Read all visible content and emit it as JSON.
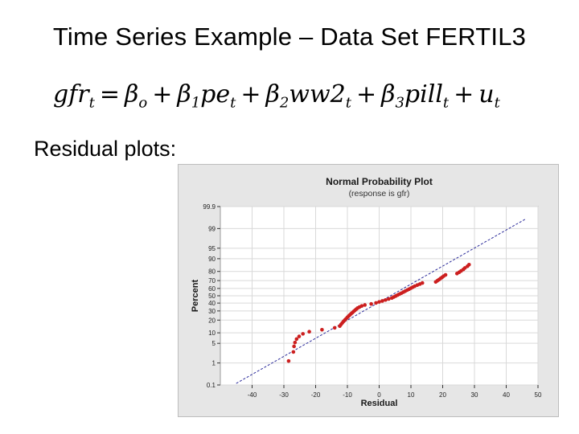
{
  "slide": {
    "title": "Time Series Example – Data Set FERTIL3",
    "subheading": "Residual plots:"
  },
  "equation": {
    "parts": [
      {
        "t": "gfr",
        "sub": "t"
      },
      {
        "op": "="
      },
      {
        "t": "β",
        "sub": "o"
      },
      {
        "op": "+"
      },
      {
        "t": "β",
        "sub": "1"
      },
      {
        "t": "pe",
        "sub": "t"
      },
      {
        "op": "+"
      },
      {
        "t": "β",
        "sub": "2"
      },
      {
        "t": "ww2",
        "sub": "t"
      },
      {
        "op": "+"
      },
      {
        "t": "β",
        "sub": "3"
      },
      {
        "t": "pill",
        "sub": "t"
      },
      {
        "op": "+"
      },
      {
        "t": "u",
        "sub": "t"
      }
    ]
  },
  "chart_data": {
    "type": "scatter",
    "title": "Normal Probability Plot",
    "subtitle": "(response is gfr)",
    "xlabel": "Residual",
    "ylabel": "Percent",
    "xlim": [
      -50,
      50
    ],
    "xticks": [
      -40,
      -30,
      -20,
      -10,
      0,
      10,
      20,
      30,
      40,
      50
    ],
    "y_scale": "normal-probability",
    "ylim": [
      0.1,
      99.9
    ],
    "yticks": [
      0.1,
      1,
      5,
      10,
      20,
      30,
      40,
      50,
      60,
      70,
      80,
      90,
      95,
      99,
      99.9
    ],
    "grid": true,
    "colors": {
      "points": "#cc1f1f",
      "fit_line": "#2b2b9a",
      "panel": "#ffffff",
      "frame": "#e6e6e6"
    },
    "fit_line": {
      "x": [
        -45,
        46
      ],
      "percent": [
        0.12,
        99.6
      ]
    },
    "points": [
      [
        -28.5,
        1.2
      ],
      [
        -27,
        2.6
      ],
      [
        -26.8,
        4.0
      ],
      [
        -26.5,
        5.3
      ],
      [
        -26,
        6.7
      ],
      [
        -25.2,
        8.0
      ],
      [
        -24,
        9.4
      ],
      [
        -22,
        10.7
      ],
      [
        -18,
        12.0
      ],
      [
        -14,
        13.4
      ],
      [
        -12.4,
        14.7
      ],
      [
        -12.0,
        16.1
      ],
      [
        -11.6,
        17.4
      ],
      [
        -11.2,
        18.8
      ],
      [
        -10.8,
        20.1
      ],
      [
        -10.4,
        21.4
      ],
      [
        -10.0,
        22.8
      ],
      [
        -9.6,
        24.1
      ],
      [
        -9.2,
        25.5
      ],
      [
        -8.8,
        26.8
      ],
      [
        -8.4,
        28.1
      ],
      [
        -8.0,
        29.5
      ],
      [
        -7.6,
        30.8
      ],
      [
        -7.2,
        32.2
      ],
      [
        -6.8,
        33.5
      ],
      [
        -6.2,
        34.8
      ],
      [
        -5.5,
        36.2
      ],
      [
        -4.5,
        37.5
      ],
      [
        -2.5,
        38.9
      ],
      [
        -1.0,
        40.2
      ],
      [
        0.0,
        41.6
      ],
      [
        1.0,
        42.9
      ],
      [
        2.0,
        44.2
      ],
      [
        3.0,
        45.6
      ],
      [
        4.0,
        46.9
      ],
      [
        4.6,
        48.3
      ],
      [
        5.2,
        49.6
      ],
      [
        5.8,
        51.0
      ],
      [
        6.4,
        52.3
      ],
      [
        7.0,
        53.6
      ],
      [
        7.6,
        55.0
      ],
      [
        8.2,
        56.3
      ],
      [
        8.8,
        57.7
      ],
      [
        9.4,
        59.0
      ],
      [
        10.0,
        60.4
      ],
      [
        10.6,
        61.7
      ],
      [
        11.2,
        63.0
      ],
      [
        12.0,
        64.4
      ],
      [
        12.8,
        65.7
      ],
      [
        13.6,
        67.1
      ],
      [
        17.8,
        68.4
      ],
      [
        18.3,
        69.8
      ],
      [
        18.8,
        71.1
      ],
      [
        19.3,
        72.5
      ],
      [
        19.8,
        73.8
      ],
      [
        20.3,
        75.2
      ],
      [
        20.9,
        76.5
      ],
      [
        24.5,
        77.9
      ],
      [
        25.2,
        79.2
      ],
      [
        25.8,
        80.5
      ],
      [
        26.5,
        81.9
      ],
      [
        27.0,
        83.2
      ],
      [
        27.8,
        84.6
      ],
      [
        28.3,
        85.9
      ]
    ]
  }
}
